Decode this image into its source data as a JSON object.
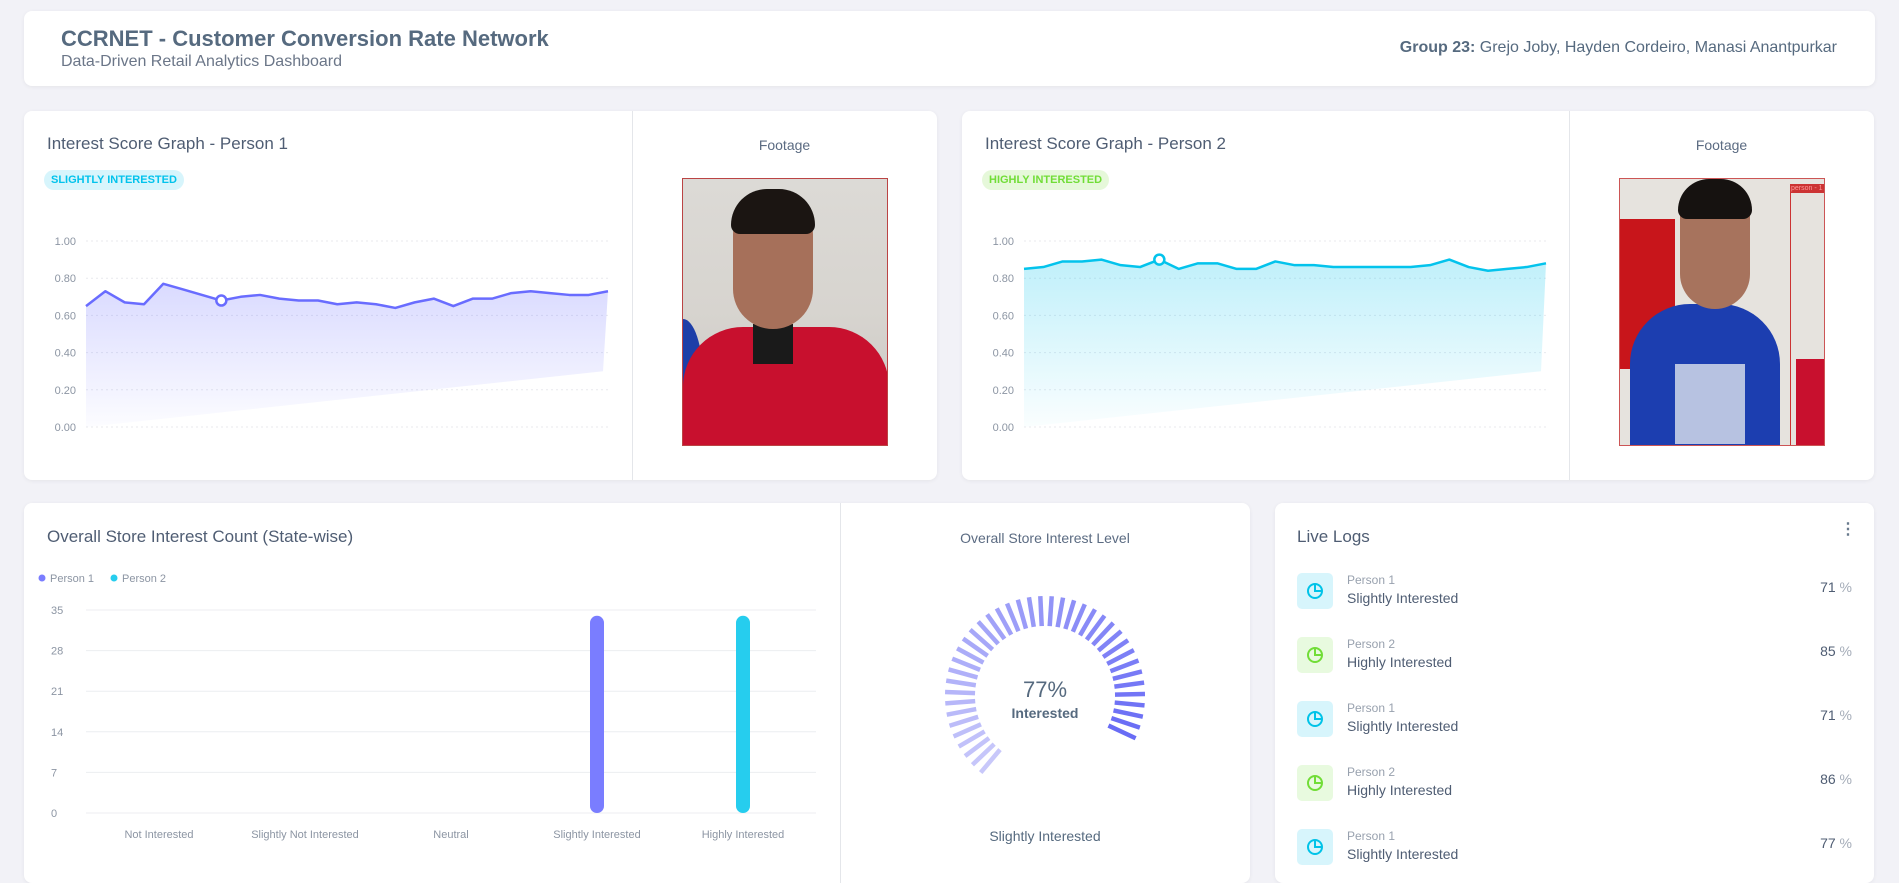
{
  "header": {
    "title": "CCRNET - Customer Conversion Rate Network",
    "subtitle": "Data-Driven Retail Analytics Dashboard",
    "group_label": "Group 23:",
    "members": "Grejo Joby, Hayden Cordeiro, Manasi Anantpurkar"
  },
  "person1": {
    "title": "Interest Score Graph - Person 1",
    "badge": "SLIGHTLY INTERESTED",
    "footage_label": "Footage"
  },
  "person2": {
    "title": "Interest Score Graph - Person 2",
    "badge": "HIGHLY INTERESTED",
    "footage_label": "Footage",
    "box_label": "person - 1"
  },
  "count_card": {
    "title": "Overall Store Interest Count (State-wise)"
  },
  "level_card": {
    "title": "Overall Store Interest Level",
    "value": "77%",
    "value_label": "Interested",
    "state": "Slightly Interested",
    "percent": 77
  },
  "logs": {
    "title": "Live Logs",
    "items": [
      {
        "person": "Person 1",
        "state": "Slightly Interested",
        "value": "71",
        "unit": "%",
        "color": "#00c3e8"
      },
      {
        "person": "Person 2",
        "state": "Highly Interested",
        "value": "85",
        "unit": "%",
        "color": "#71dd37"
      },
      {
        "person": "Person 1",
        "state": "Slightly Interested",
        "value": "71",
        "unit": "%",
        "color": "#00c3e8"
      },
      {
        "person": "Person 2",
        "state": "Highly Interested",
        "value": "86",
        "unit": "%",
        "color": "#71dd37"
      },
      {
        "person": "Person 1",
        "state": "Slightly Interested",
        "value": "77",
        "unit": "%",
        "color": "#00c3e8"
      }
    ]
  },
  "chart_data": [
    {
      "type": "area",
      "title": "Interest Score Graph - Person 1",
      "color": "#696cff",
      "ylim": [
        0,
        1
      ],
      "yticks": [
        "0.00",
        "0.20",
        "0.40",
        "0.60",
        "0.80",
        "1.00"
      ],
      "values": [
        0.65,
        0.73,
        0.67,
        0.66,
        0.77,
        0.74,
        0.71,
        0.68,
        0.7,
        0.71,
        0.69,
        0.68,
        0.68,
        0.66,
        0.67,
        0.66,
        0.64,
        0.67,
        0.69,
        0.65,
        0.69,
        0.69,
        0.72,
        0.73,
        0.72,
        0.71,
        0.71,
        0.73
      ],
      "marker_index": 7
    },
    {
      "type": "area",
      "title": "Interest Score Graph - Person 2",
      "color": "#03c3ec",
      "ylim": [
        0,
        1
      ],
      "yticks": [
        "0.00",
        "0.20",
        "0.40",
        "0.60",
        "0.80",
        "1.00"
      ],
      "values": [
        0.85,
        0.86,
        0.89,
        0.89,
        0.9,
        0.87,
        0.86,
        0.9,
        0.85,
        0.88,
        0.88,
        0.85,
        0.85,
        0.89,
        0.87,
        0.87,
        0.86,
        0.86,
        0.86,
        0.86,
        0.86,
        0.87,
        0.9,
        0.86,
        0.84,
        0.85,
        0.86,
        0.88
      ],
      "marker_index": 7
    },
    {
      "type": "bar",
      "title": "Overall Store Interest Count (State-wise)",
      "categories": [
        "Not Interested",
        "Slightly Not Interested",
        "Neutral",
        "Slightly Interested",
        "Highly Interested"
      ],
      "ylim": [
        0,
        35
      ],
      "yticks": [
        "0",
        "7",
        "14",
        "21",
        "28",
        "35"
      ],
      "legend": "top-left",
      "series": [
        {
          "name": "Person 1",
          "color": "#7a7dff",
          "values": [
            0,
            0,
            0,
            34,
            0
          ]
        },
        {
          "name": "Person 2",
          "color": "#26cdee",
          "values": [
            0,
            0,
            0,
            0,
            34
          ]
        }
      ]
    }
  ]
}
